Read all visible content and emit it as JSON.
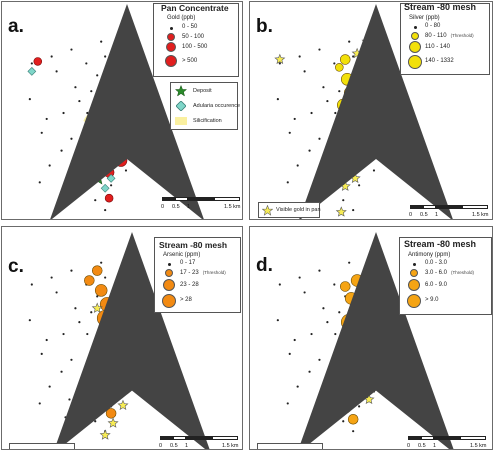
{
  "colors": {
    "gold": "#e11e1e",
    "silver": "#f2e00a",
    "arsenic": "#f28a12",
    "antimony": "#f5a414",
    "star": "#f7ec55",
    "star_deposit": "#2a8a2a",
    "adularia": "#7fd6c9",
    "silicification": "#faf0a0",
    "sample": "#222222"
  },
  "panels": [
    {
      "label": "a.",
      "legend": {
        "title": "Pan Concentrate",
        "subtitle": "Gold (ppb)",
        "classes": [
          {
            "label": "0 - 50",
            "note": ""
          },
          {
            "label": "50 - 100",
            "note": ""
          },
          {
            "label": "100 - 500",
            "note": ""
          },
          {
            "label": "> 500",
            "note": ""
          }
        ]
      },
      "extra_legend": [
        {
          "label": "Deposit",
          "icon": "star-icon"
        },
        {
          "label": "Adularia occurence",
          "icon": "diamond-icon"
        },
        {
          "label": "Silicification",
          "icon": "silicification-icon"
        }
      ],
      "scale": {
        "ticks": [
          "0",
          "0.5",
          "1",
          "1.5 km"
        ]
      }
    },
    {
      "label": "b.",
      "legend": {
        "title": "Stream -80 mesh",
        "subtitle": "Silver (ppb)",
        "classes": [
          {
            "label": "0 - 80",
            "note": ""
          },
          {
            "label": "80 - 110",
            "note": "(Threshold)"
          },
          {
            "label": "110 - 140",
            "note": ""
          },
          {
            "label": "140 - 1332",
            "note": ""
          }
        ]
      },
      "note": "Visible gold in pan",
      "scale": {
        "ticks": [
          "0",
          "0.5",
          "1",
          "1.5 km"
        ]
      }
    },
    {
      "label": "c.",
      "legend": {
        "title": "Stream -80 mesh",
        "subtitle": "Arsenic (ppm)",
        "classes": [
          {
            "label": "0 - 17",
            "note": ""
          },
          {
            "label": "17 - 23",
            "note": "(Threshold)"
          },
          {
            "label": "23 - 28",
            "note": ""
          },
          {
            "label": "> 28",
            "note": ""
          }
        ]
      },
      "scale": {
        "ticks": [
          "0",
          "0.5",
          "1",
          "1.5 km"
        ]
      }
    },
    {
      "label": "d.",
      "legend": {
        "title": "Stream -80 mesh",
        "subtitle": "Antimony (ppm)",
        "classes": [
          {
            "label": "0.0 - 3.0",
            "note": ""
          },
          {
            "label": "3.0 - 6.0",
            "note": "(Threshold)"
          },
          {
            "label": "6.0 - 9.0",
            "note": ""
          },
          {
            "label": "> 9.0",
            "note": ""
          }
        ]
      },
      "scale": {
        "ticks": [
          "0",
          "0.5",
          "1",
          "1.5 km"
        ]
      }
    }
  ]
}
